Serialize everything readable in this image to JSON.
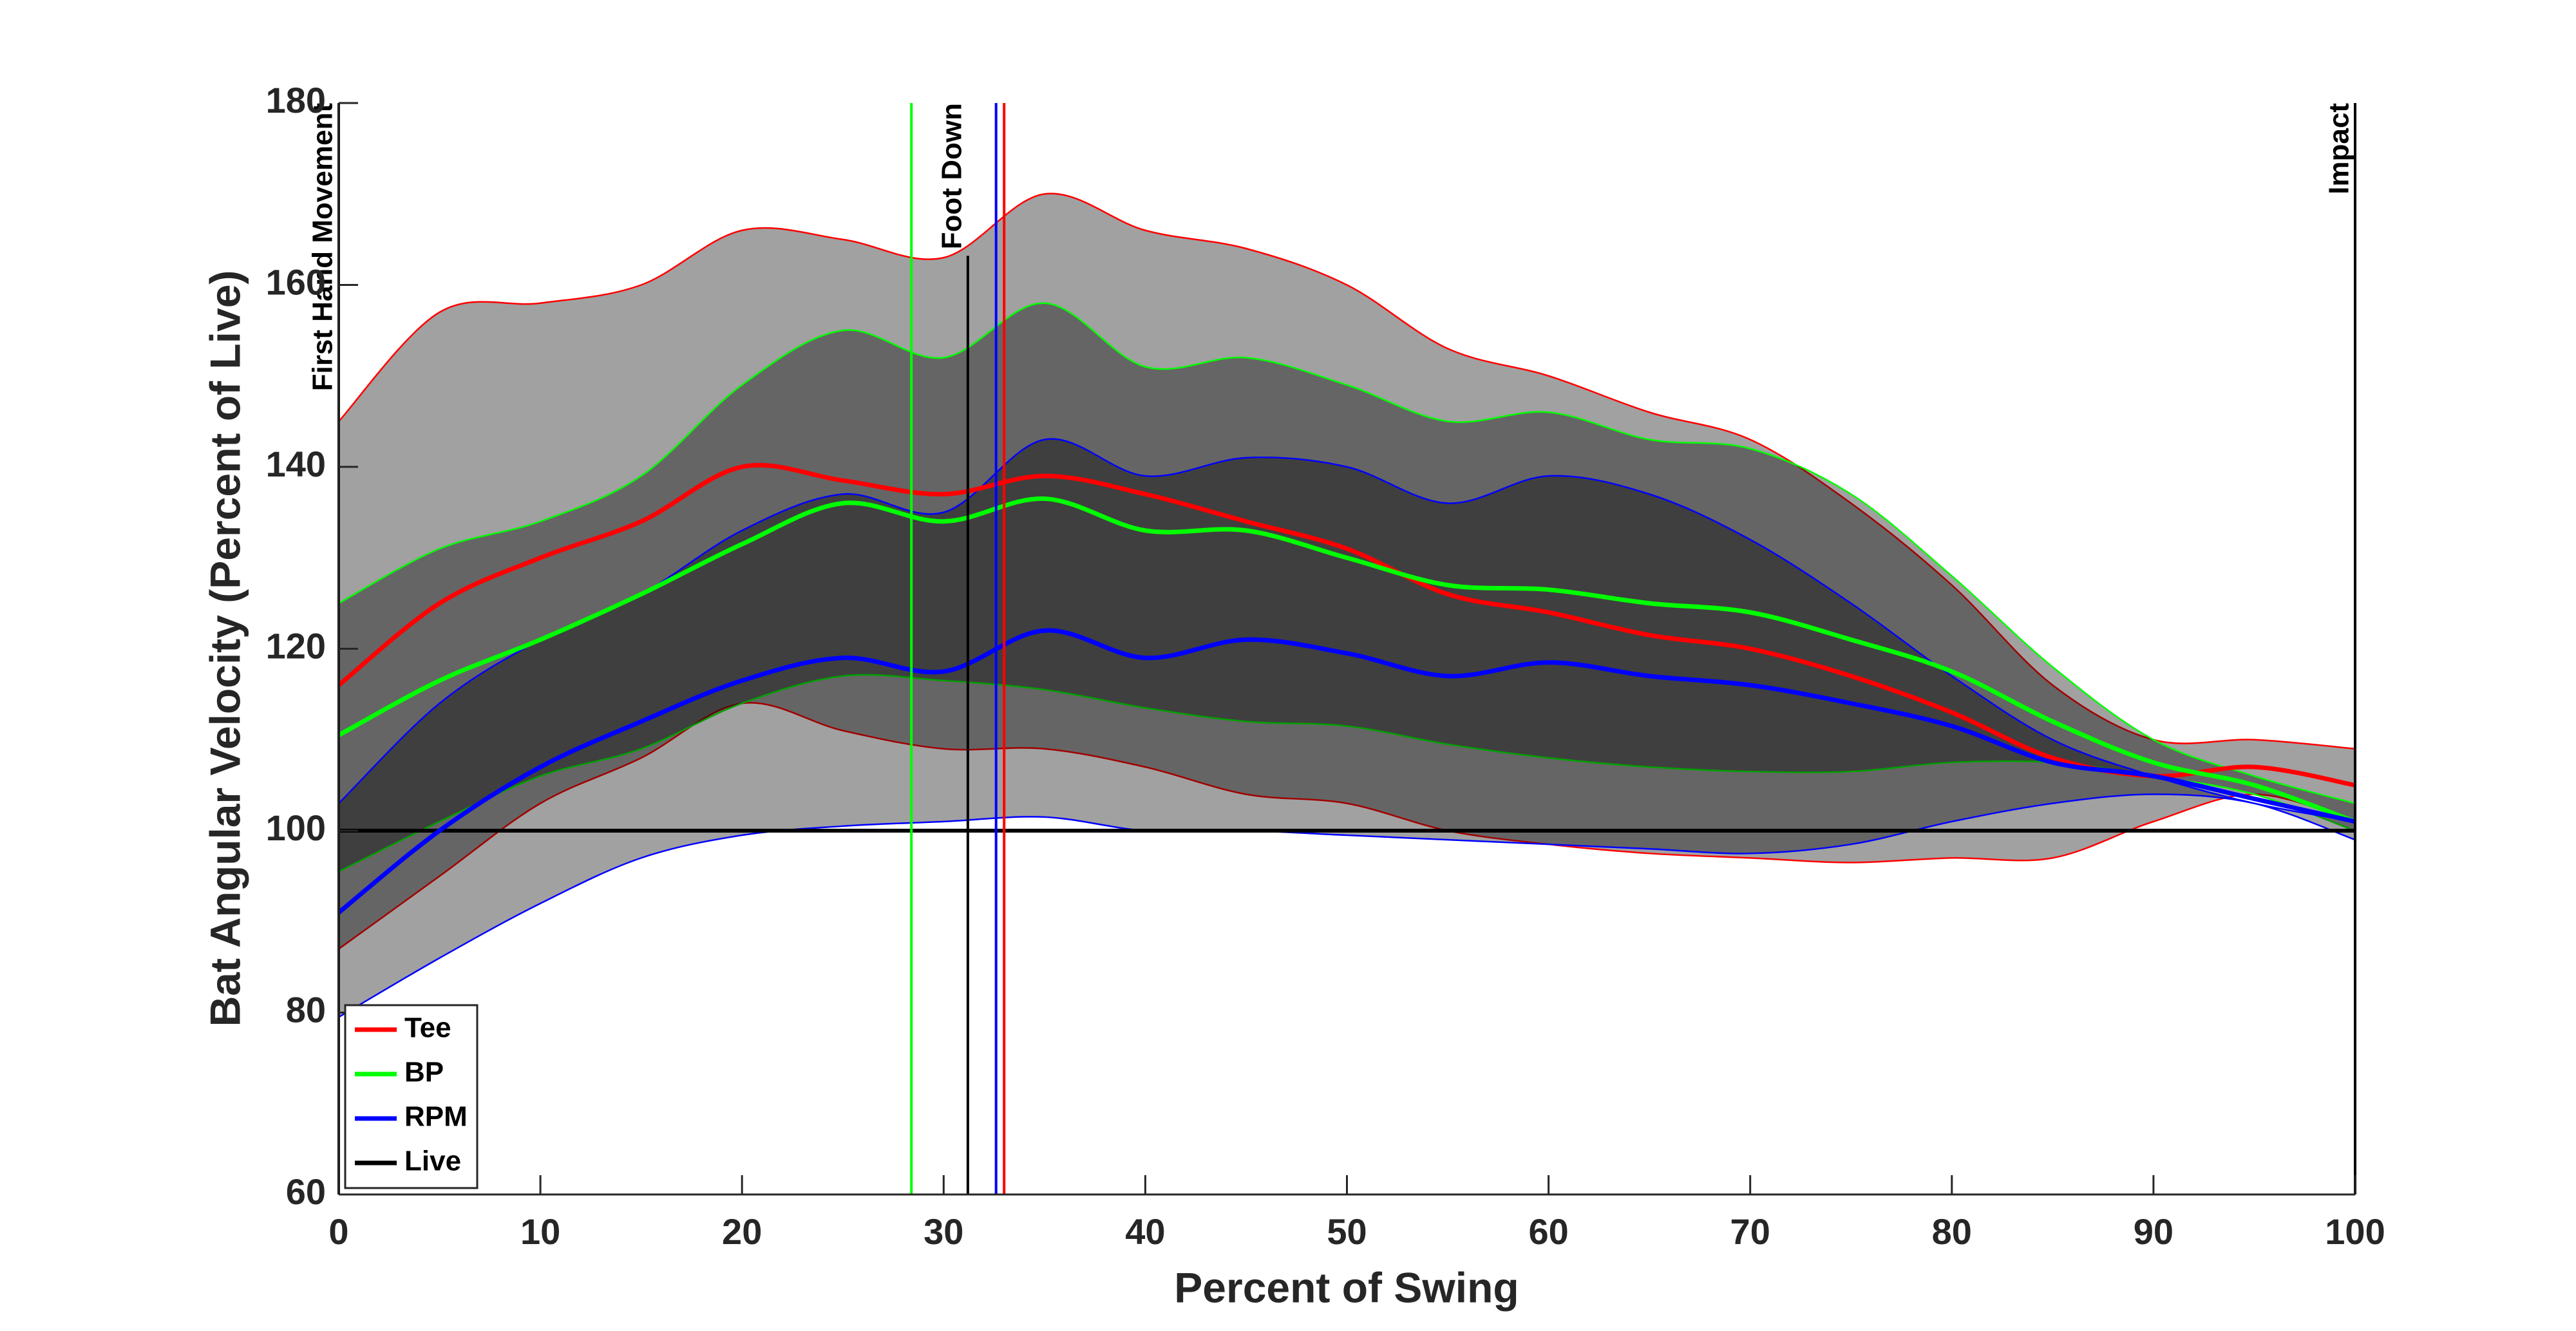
{
  "chart_data": {
    "type": "line",
    "x_label": "Percent of Swing",
    "y_label": "Bat Angular Velocity (Percent of Live)",
    "x": [
      0,
      5,
      10,
      15,
      20,
      25,
      30,
      35,
      40,
      45,
      50,
      55,
      60,
      65,
      70,
      75,
      80,
      85,
      90,
      95,
      100
    ],
    "series": [
      {
        "name": "Tee",
        "color": "#ff0000",
        "values": [
          116,
          125,
          130,
          134,
          140,
          138.5,
          137,
          139,
          137,
          134,
          131,
          126,
          124,
          121.5,
          120,
          117,
          113,
          108,
          106,
          107,
          105
        ],
        "upper": [
          145,
          157,
          158,
          160,
          166,
          165,
          163,
          170,
          166,
          164,
          160,
          153,
          150,
          146,
          143,
          136,
          127,
          116,
          110,
          110,
          109
        ],
        "lower": [
          87,
          95,
          103,
          108,
          114,
          111,
          109,
          109,
          107,
          104,
          103,
          100,
          98.5,
          97.5,
          97,
          96.5,
          97,
          97,
          101,
          104,
          101
        ]
      },
      {
        "name": "BP",
        "color": "#00ff00",
        "values": [
          110.5,
          116.5,
          121,
          126,
          131.5,
          136,
          134,
          136.5,
          133,
          133,
          130,
          127,
          126.5,
          125,
          124,
          121,
          117.5,
          112,
          107.5,
          105,
          101
        ],
        "upper": [
          125,
          131,
          134,
          139,
          149,
          155,
          152,
          158,
          151,
          152,
          149,
          145,
          146,
          143,
          142,
          137,
          128,
          118,
          110,
          106,
          103
        ],
        "lower": [
          95.5,
          101,
          106,
          109,
          114,
          117,
          116.5,
          115.5,
          113.5,
          112,
          111.5,
          109.5,
          108,
          107,
          106.5,
          106.5,
          107.5,
          107.5,
          106,
          104,
          100
        ]
      },
      {
        "name": "RPM",
        "color": "#0000ff",
        "values": [
          91,
          100,
          107,
          112,
          116.5,
          119,
          117.5,
          122,
          119,
          121,
          119.5,
          117,
          118.5,
          117,
          116,
          114,
          111.5,
          107.5,
          106,
          103.5,
          101
        ],
        "upper": [
          103,
          114,
          121,
          126,
          133,
          137,
          135,
          143,
          139,
          141,
          140,
          136,
          139,
          137,
          132,
          125,
          117,
          110,
          106,
          103,
          101
        ],
        "lower": [
          79.5,
          86,
          92,
          97,
          99.5,
          100.5,
          101,
          101.5,
          100,
          100,
          99.5,
          99,
          98.5,
          98,
          97.5,
          98.5,
          101,
          103,
          104,
          103,
          99
        ]
      }
    ],
    "reference": {
      "name": "Live",
      "color": "#000000",
      "value": 100
    },
    "events": [
      {
        "label": "First Hand Movement",
        "x": 0,
        "color": "#000000"
      },
      {
        "x": 28.4,
        "color": "#00ff00"
      },
      {
        "label": "Foot Down",
        "x": 31.2,
        "color": "#000000"
      },
      {
        "x": 32.6,
        "color": "#0000ff"
      },
      {
        "x": 33.0,
        "color": "#ff0000"
      },
      {
        "label": "Impact",
        "x": 100,
        "color": "#000000"
      }
    ],
    "xlim": [
      0,
      100
    ],
    "xticks": [
      0,
      10,
      20,
      30,
      40,
      50,
      60,
      70,
      80,
      90,
      100
    ],
    "ylim": [
      60,
      180
    ],
    "yticks": [
      60,
      80,
      100,
      120,
      140,
      160,
      180
    ],
    "legend": "lower left"
  }
}
